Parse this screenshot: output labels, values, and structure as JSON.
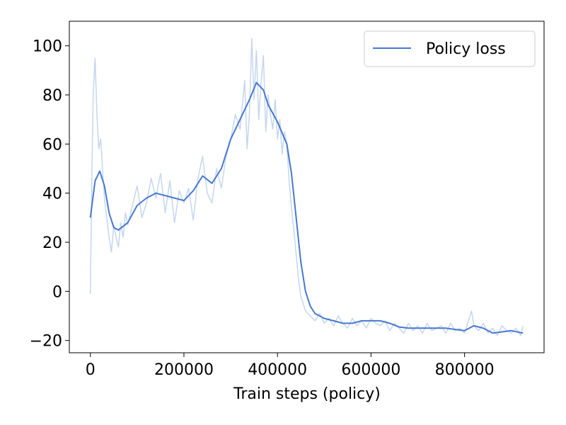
{
  "chart_data": {
    "type": "line",
    "title": "",
    "xlabel": "Train steps (policy)",
    "ylabel": "",
    "xlim": [
      -45000,
      970000
    ],
    "ylim": [
      -25,
      110
    ],
    "xticks": [
      0,
      200000,
      400000,
      600000,
      800000
    ],
    "xtick_labels": [
      "0",
      "200000",
      "400000",
      "600000",
      "800000"
    ],
    "yticks": [
      -20,
      0,
      20,
      40,
      60,
      80,
      100
    ],
    "ytick_labels": [
      "−20",
      "0",
      "20",
      "40",
      "60",
      "80",
      "100"
    ],
    "grid": false,
    "legend": {
      "position": "top-right",
      "entries": [
        "Policy loss"
      ]
    },
    "colors": {
      "smooth": "#4878cf",
      "raw": "#c5d6ef"
    },
    "series": [
      {
        "name": "Policy loss",
        "role": "smoothed",
        "x": [
          0,
          10000,
          20000,
          30000,
          40000,
          50000,
          60000,
          80000,
          100000,
          120000,
          140000,
          160000,
          180000,
          200000,
          220000,
          240000,
          260000,
          280000,
          300000,
          320000,
          340000,
          355000,
          370000,
          380000,
          400000,
          420000,
          430000,
          440000,
          450000,
          460000,
          470000,
          480000,
          490000,
          500000,
          520000,
          540000,
          560000,
          580000,
          600000,
          620000,
          640000,
          660000,
          680000,
          700000,
          720000,
          740000,
          760000,
          780000,
          800000,
          820000,
          840000,
          860000,
          880000,
          900000,
          925000
        ],
        "y": [
          30,
          45,
          49,
          43,
          32,
          26,
          25,
          28,
          35,
          38,
          40,
          39,
          38,
          37,
          41,
          47,
          44,
          50,
          62,
          70,
          78,
          85,
          82,
          76,
          69,
          60,
          48,
          30,
          12,
          0,
          -6,
          -9,
          -10,
          -11,
          -12,
          -13,
          -13,
          -12,
          -12,
          -12,
          -13,
          -14.5,
          -15,
          -15,
          -15,
          -15,
          -15,
          -15.5,
          -16,
          -14,
          -15,
          -17,
          -16.5,
          -16,
          -17
        ]
      },
      {
        "name": "",
        "role": "raw",
        "x": [
          0,
          3000,
          6000,
          10000,
          14000,
          18000,
          22000,
          26000,
          30000,
          35000,
          40000,
          45000,
          50000,
          55000,
          60000,
          65000,
          70000,
          75000,
          80000,
          90000,
          100000,
          110000,
          120000,
          130000,
          140000,
          150000,
          160000,
          170000,
          180000,
          190000,
          200000,
          210000,
          220000,
          230000,
          240000,
          250000,
          260000,
          270000,
          280000,
          290000,
          300000,
          310000,
          320000,
          330000,
          335000,
          340000,
          345000,
          350000,
          355000,
          360000,
          365000,
          370000,
          375000,
          380000,
          385000,
          390000,
          395000,
          400000,
          405000,
          410000,
          415000,
          420000,
          425000,
          430000,
          435000,
          440000,
          445000,
          450000,
          455000,
          460000,
          470000,
          480000,
          490000,
          500000,
          510000,
          520000,
          530000,
          540000,
          550000,
          560000,
          570000,
          580000,
          590000,
          600000,
          610000,
          620000,
          630000,
          640000,
          650000,
          660000,
          670000,
          680000,
          690000,
          700000,
          710000,
          720000,
          730000,
          740000,
          750000,
          760000,
          770000,
          780000,
          790000,
          800000,
          810000,
          815000,
          820000,
          830000,
          840000,
          850000,
          860000,
          870000,
          880000,
          890000,
          900000,
          910000,
          920000,
          925000
        ],
        "y": [
          -1,
          45,
          80,
          95,
          72,
          58,
          62,
          50,
          38,
          30,
          22,
          16,
          27,
          22,
          18,
          28,
          22,
          32,
          27,
          35,
          43,
          30,
          36,
          46,
          38,
          48,
          32,
          45,
          28,
          41,
          36,
          42,
          29,
          46,
          55,
          40,
          36,
          50,
          42,
          55,
          62,
          72,
          66,
          86,
          58,
          72,
          103,
          78,
          98,
          70,
          85,
          96,
          65,
          80,
          72,
          66,
          78,
          62,
          70,
          56,
          65,
          60,
          45,
          34,
          25,
          15,
          5,
          -2,
          -5,
          -8,
          -10,
          -12,
          -9,
          -13,
          -11,
          -14,
          -10,
          -13,
          -15,
          -11,
          -14,
          -12,
          -15,
          -11,
          -13,
          -14,
          -12,
          -16,
          -13,
          -15,
          -17,
          -13,
          -16,
          -14,
          -17,
          -13,
          -16,
          -15,
          -14,
          -17,
          -13,
          -16,
          -15,
          -17,
          -11,
          -8,
          -14,
          -16,
          -13,
          -17,
          -15,
          -18,
          -14,
          -16,
          -17,
          -15,
          -18,
          -14
        ]
      }
    ]
  }
}
